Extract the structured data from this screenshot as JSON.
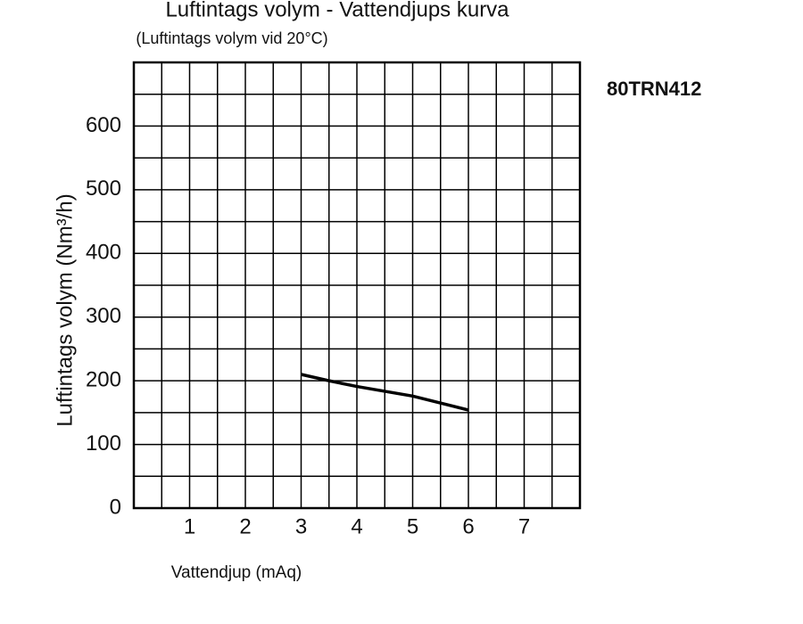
{
  "chart_data": {
    "type": "line",
    "title": "Luftintags volym - Vattendjups kurva",
    "subtitle": "(Luftintags volym vid 20°C)",
    "annotation": "80TRN412",
    "x_label": "Vattendjup (mAq)",
    "y_label": "Luftintags volym (Nm³/h)",
    "x": [
      3,
      3.5,
      4,
      5,
      6
    ],
    "series": [
      {
        "name": "80TRN412",
        "color": "#000000",
        "values": [
          210,
          200,
          191,
          176,
          154
        ]
      }
    ],
    "xlim": [
      0,
      8
    ],
    "xticks": [
      1,
      2,
      3,
      4,
      5,
      6,
      7
    ],
    "ylim": [
      0,
      700
    ],
    "yticks": [
      0,
      100,
      200,
      300,
      400,
      500,
      600
    ],
    "grid": true
  }
}
